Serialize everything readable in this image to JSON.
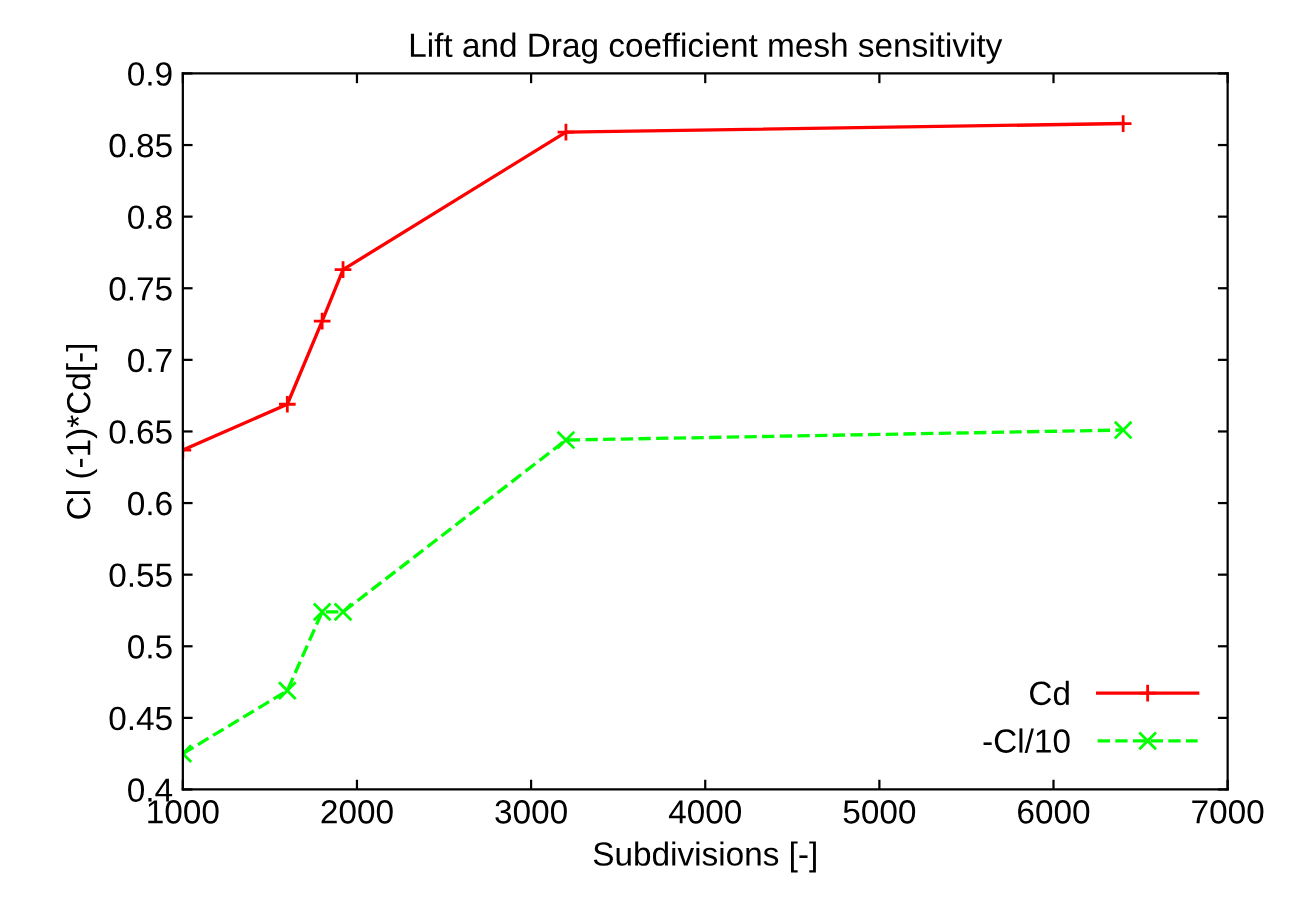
{
  "chart_data": {
    "type": "line",
    "title": "Lift and Drag coefficient mesh sensitivity",
    "xlabel": "Subdivisions [-]",
    "ylabel": "Cl (-1)*Cd[-]",
    "x": [
      1000,
      1600,
      1800,
      1920,
      3200,
      6400
    ],
    "series": [
      {
        "name": "Cd",
        "color": "#ff0000",
        "marker": "plus",
        "line_style": "solid",
        "values": [
          0.637,
          0.669,
          0.727,
          0.763,
          0.859,
          0.865
        ]
      },
      {
        "name": "-Cl/10",
        "color": "#00ff00",
        "marker": "cross",
        "line_style": "dashed",
        "values": [
          0.425,
          0.469,
          0.524,
          0.524,
          0.644,
          0.651
        ]
      }
    ],
    "xlim": [
      1000,
      7000
    ],
    "xticks": [
      1000,
      2000,
      3000,
      4000,
      5000,
      6000,
      7000
    ],
    "ylim": [
      0.4,
      0.9
    ],
    "yticks": [
      0.4,
      0.45,
      0.5,
      0.55,
      0.6,
      0.65,
      0.7,
      0.75,
      0.8,
      0.85,
      0.9
    ],
    "grid": false,
    "legend": "bottom right"
  }
}
